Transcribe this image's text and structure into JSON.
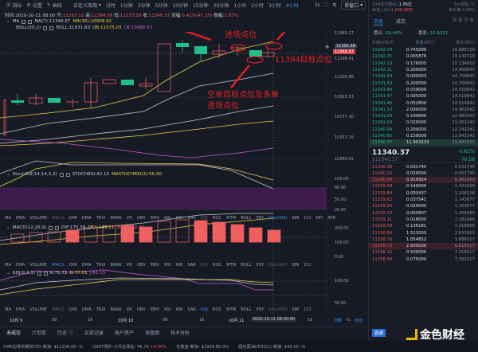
{
  "toolbar": {
    "indicator": "指标",
    "settings": "设置",
    "draw": "画线",
    "custom_period": "自定义周期",
    "periods": [
      "分时",
      "1分钟",
      "3分钟",
      "5分钟",
      "10分钟",
      "15分钟",
      "30分钟",
      "1小时",
      "2小时",
      "3小时",
      "4小时"
    ],
    "active_period": "4小时",
    "interval": "3s",
    "window_mode": "单窗口"
  },
  "ohlc": {
    "time_label": "时间:",
    "time": "2020-10-11 08:00",
    "open_label": "开:",
    "open": "11293.02",
    "high_label": "高:",
    "high": "11394.36",
    "low_label": "低:",
    "low": "11273.30",
    "close_label": "收:",
    "close": "11340.37",
    "change_label": "涨幅:",
    "change": "0.42%(47.35)",
    "amp_label": "振幅:",
    "amp": "1.07%"
  },
  "ma": {
    "name": "MA",
    "ma7": "MA(7):11348.87",
    "ma30": "MA(30):10908.92"
  },
  "boll": {
    "name": "BOLL(20,2)",
    "boll": "BOLL:11031.83",
    "ub": "UB:11575.03",
    "lb": "LB:10488.63"
  },
  "price_axis": [
    "11489.17",
    "11392.38",
    "11340.37",
    "11298.41",
    "11106.88",
    "10920.53",
    "10737.30",
    "10557.15",
    "10380.03"
  ],
  "annotations": {
    "entry": "进场点位",
    "target": "11394目标点位",
    "short_target": "空单目标点位及多单",
    "short_target2": "进场点位"
  },
  "stochrsi": {
    "name": "StochRSI(14,14,3,3)",
    "value": "STOCHRSI:42.15",
    "ma": "MASTOCHRSI(3):56.90",
    "axis": [
      "100.00",
      "80.00",
      "50.00",
      "20.00"
    ]
  },
  "macd": {
    "name": "MACD(12,26,9)",
    "dif": "DIF:175.58",
    "dea": "DEA:149.21",
    "macd": "MACD:52.74",
    "axis": [
      "200.00",
      "100.00",
      "0.00"
    ]
  },
  "kdj": {
    "name": "KDJ(9,3,3)",
    "k": "K:71.72",
    "d": "D:77.01",
    "j": "J:61.15",
    "axis": [
      "100.00",
      "50.00"
    ]
  },
  "indicator_tabs": [
    "MA",
    "EMA",
    "VOLUME",
    "MACD",
    "DMI",
    "DMA",
    "TRIX",
    "BRAR",
    "VR",
    "OBV",
    "EMV",
    "RSI",
    "WR",
    "SAR",
    "KDJ",
    "ROC",
    "MTM",
    "BOLL",
    "PSY",
    "StochRSI",
    "SMI",
    "CCI",
    "MFI",
    "ATR"
  ],
  "indicator_tabs_short": [
    "MA",
    "EMA",
    "VOLUME",
    "MACD",
    "DMI",
    "DMA",
    "TRIX",
    "BRAR",
    "VR",
    "OBV",
    "EMV",
    "RSI",
    "WR",
    "SAR",
    "KDJ",
    "ROC",
    "MTM",
    "BOLL",
    "PSY",
    "StochRSI",
    "SMI",
    "CCI"
  ],
  "time_axis": {
    "labels": [
      "10月 9",
      "08",
      "16",
      "10月 10",
      "08",
      "16",
      "10月 11",
      "16"
    ],
    "cursor": "2020-10-11 08:00:00",
    "log": "对数",
    "pct": "%",
    "auto": "自动"
  },
  "bottom_tabs": [
    "未成交",
    "计划单",
    "历史",
    "买卖记录",
    "账户资产",
    "深度图",
    "技术分析"
  ],
  "ticker": [
    {
      "name": "CME比特币期货CFD-新浪:",
      "value": "$11106.00",
      "chg": "-%"
    },
    {
      "name": "USDT场外-火币全球站:",
      "value": "¥6.70",
      "chg": "+0.30%"
    },
    {
      "name": "伦敦金-新浪:",
      "value": "$1929.85",
      "chg": "0%"
    },
    {
      "name": "纽约原油CFD(CL)-新浪:",
      "value": "$40.55",
      "chg": "-%"
    }
  ],
  "right": {
    "vol_label": "24H成交额($):",
    "vol": "1.95亿",
    "change_label": "5m涨幅:",
    "change": "-%",
    "inflow_label": "净流入($):",
    "inflow": "1,248.08万",
    "turnover_label": "换手率:",
    "turnover": "0.09%",
    "tabs": [
      "交易",
      "成交"
    ],
    "ratio_label": "委比:",
    "ratio": "-29.48%",
    "diff_label": "委差:",
    "diff": "-10.9251",
    "head": [
      "价格(USDT)",
      "数量(BTC)",
      "累计(BTC)"
    ],
    "asks": [
      [
        "11342.24",
        "0.745000",
        "15.885728"
      ],
      [
        "11342.15",
        "0.005878",
        "15.140728"
      ],
      [
        "11342.13",
        "0.176005",
        "15.134850"
      ],
      [
        "11342.11",
        "0.200000",
        "14.958845"
      ],
      [
        "11341.54",
        "0.000003",
        "14.758845"
      ],
      [
        "11341.50",
        "0.200000",
        "14.758842"
      ],
      [
        "11341.48",
        "0.039000",
        "14.558842"
      ],
      [
        "11341.47",
        "0.005000",
        "14.519842"
      ],
      [
        "11341.46",
        "0.052800",
        "14.514842"
      ],
      [
        "11341.10",
        "2.000000",
        "14.462042"
      ],
      [
        "11341.09",
        "0.199800",
        "12.462042"
      ],
      [
        "11341.04",
        "0.020000",
        "12.262242"
      ],
      [
        "11340.94",
        "0.200000",
        "12.242242"
      ],
      [
        "11340.65",
        "0.139009",
        "12.042242"
      ],
      [
        "11340.37",
        "11.903233",
        "11.903233"
      ]
    ],
    "last": "11340.37",
    "last_usd": "$11340.37",
    "last_pct": "-0.62%",
    "last_chg": "-70.58",
    "bids": [
      [
        "11340.36",
        "0.031745",
        "0.031745"
      ],
      [
        "11340.20",
        "0.020000",
        "0.051745"
      ],
      [
        "11340.00",
        "0.910954",
        "0.962699"
      ],
      [
        "11339.99",
        "0.140000",
        "1.102699"
      ],
      [
        "11339.80",
        "0.003437",
        "1.106136"
      ],
      [
        "11339.62",
        "0.037541",
        "1.143677"
      ],
      [
        "11339.33",
        "0.020000",
        "1.163677"
      ],
      [
        "11339.23",
        "0.000807",
        "1.164484"
      ],
      [
        "11339.11",
        "0.018000",
        "1.182484"
      ],
      [
        "11339.09",
        "0.136181",
        "1.318665"
      ],
      [
        "11338.84",
        "1.513000",
        "2.831665"
      ],
      [
        "11338.76",
        "1.054852",
        "3.886517"
      ],
      [
        "11338.73",
        "2.930000",
        "6.816517"
      ],
      [
        "11338.12",
        "0.500000",
        "7.316517"
      ],
      [
        "11338.00",
        "0.075000",
        "7.391517"
      ]
    ],
    "mode": "普通"
  },
  "logo": "金色财经"
}
